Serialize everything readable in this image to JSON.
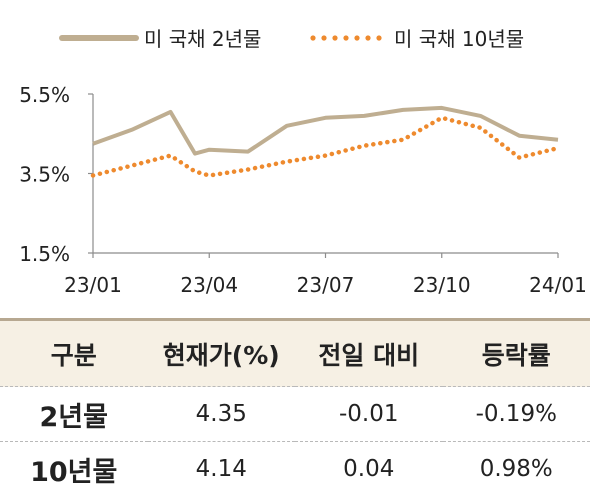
{
  "chart_data": {
    "type": "line",
    "ylim": [
      1.5,
      5.5
    ],
    "y_ticks": [
      "5.5%",
      "3.5%",
      "1.5%"
    ],
    "x_ticks": [
      "23/01",
      "23/04",
      "23/07",
      "23/10",
      "24/01"
    ],
    "legend_position": "top",
    "grid": false,
    "x": [
      "2023-01",
      "2023-02",
      "2023-03",
      "2023-03-20",
      "2023-04",
      "2023-05",
      "2023-06",
      "2023-07",
      "2023-08",
      "2023-09",
      "2023-10",
      "2023-11",
      "2023-12",
      "2024-01"
    ],
    "series": [
      {
        "name": "미 국채 2년물",
        "color": "#bfae91",
        "style": "solid",
        "values": [
          4.25,
          4.6,
          5.05,
          4.0,
          4.1,
          4.05,
          4.7,
          4.9,
          4.95,
          5.1,
          5.15,
          4.95,
          4.45,
          4.35
        ]
      },
      {
        "name": "미 국채 10년물",
        "color": "#ee8a2e",
        "style": "dotted",
        "values": [
          3.45,
          3.7,
          3.95,
          3.55,
          3.45,
          3.6,
          3.8,
          3.95,
          4.2,
          4.35,
          4.9,
          4.65,
          3.9,
          4.14
        ]
      }
    ]
  },
  "table": {
    "headers": [
      "구분",
      "현재가(%)",
      "전일 대비",
      "등락률"
    ],
    "rows": [
      [
        "2년물",
        "4.35",
        "-0.01",
        "-0.19%"
      ],
      [
        "10년물",
        "4.14",
        "0.04",
        "0.98%"
      ]
    ]
  }
}
